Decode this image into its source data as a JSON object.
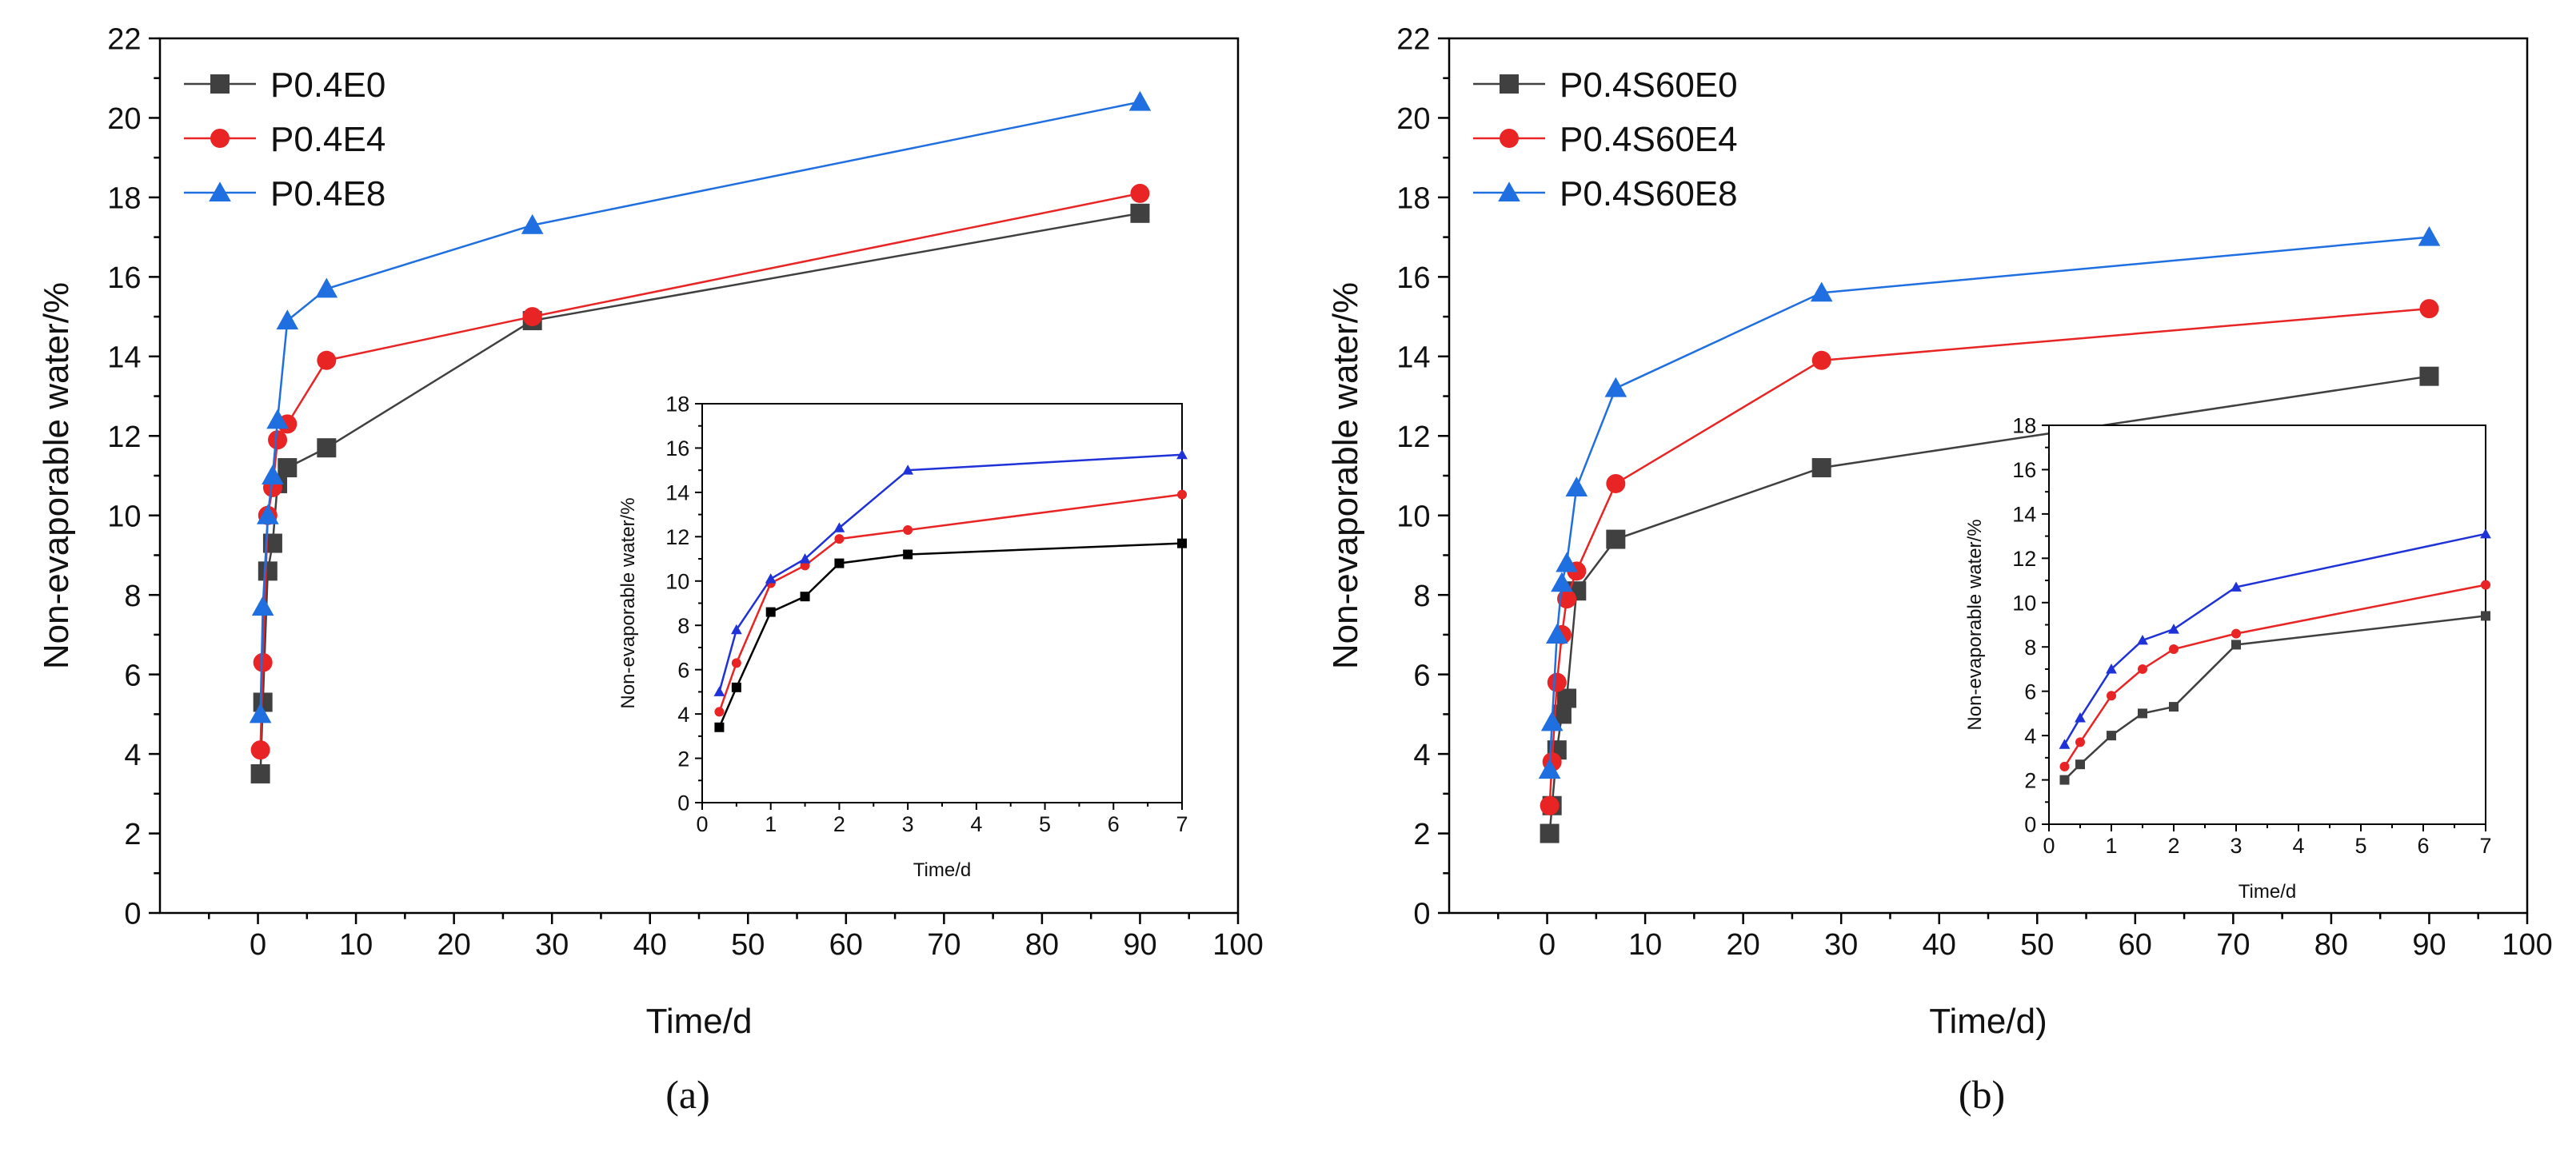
{
  "figure": {
    "panels": [
      {
        "id": "a",
        "caption": "(a)",
        "main": {
          "xlabel": "Time/d",
          "ylabel": "Non-evaporable water/%",
          "xlim": [
            -10,
            100
          ],
          "ylim": [
            0,
            22
          ],
          "xticks": [
            0,
            10,
            20,
            30,
            40,
            50,
            60,
            70,
            80,
            90,
            100
          ],
          "yticks": [
            0,
            2,
            4,
            6,
            8,
            10,
            12,
            14,
            16,
            18,
            20,
            22
          ],
          "series": [
            {
              "name": "P0.4E0",
              "color": "#404040",
              "marker": "square",
              "x": [
                0.25,
                0.5,
                1,
                1.5,
                2,
                3,
                7,
                28,
                90
              ],
              "y": [
                3.5,
                5.3,
                8.6,
                9.3,
                10.8,
                11.2,
                11.7,
                14.9,
                17.6
              ]
            },
            {
              "name": "P0.4E4",
              "color": "#e82424",
              "marker": "circle",
              "x": [
                0.25,
                0.5,
                1,
                1.5,
                2,
                3,
                7,
                28,
                90
              ],
              "y": [
                4.1,
                6.3,
                10.0,
                10.7,
                11.9,
                12.3,
                13.9,
                15.0,
                18.1
              ]
            },
            {
              "name": "P0.4E8",
              "color": "#1f6fe0",
              "marker": "triangle",
              "x": [
                0.25,
                0.5,
                1,
                1.5,
                2,
                3,
                7,
                28,
                90
              ],
              "y": [
                5.0,
                7.7,
                10.0,
                11.0,
                12.4,
                14.9,
                15.7,
                17.3,
                20.4
              ]
            }
          ]
        },
        "inset": {
          "xlabel": "Time/d",
          "ylabel": "Non-evaporable water/%",
          "xlim": [
            0,
            7
          ],
          "ylim": [
            0,
            18
          ],
          "xticks": [
            0,
            1,
            2,
            3,
            4,
            5,
            6,
            7
          ],
          "yticks": [
            0,
            2,
            4,
            6,
            8,
            10,
            12,
            14,
            16,
            18
          ],
          "series": [
            {
              "color": "#000000",
              "marker": "square",
              "x": [
                0.25,
                0.5,
                1,
                1.5,
                2,
                3,
                7
              ],
              "y": [
                3.4,
                5.2,
                8.6,
                9.3,
                10.8,
                11.2,
                11.7
              ]
            },
            {
              "color": "#e82424",
              "marker": "circle",
              "x": [
                0.25,
                0.5,
                1,
                1.5,
                2,
                3,
                7
              ],
              "y": [
                4.1,
                6.3,
                9.9,
                10.7,
                11.9,
                12.3,
                13.9
              ]
            },
            {
              "color": "#1f32d8",
              "marker": "triangle",
              "x": [
                0.25,
                0.5,
                1,
                1.5,
                2,
                3,
                7
              ],
              "y": [
                5.0,
                7.8,
                10.1,
                11.0,
                12.4,
                15.0,
                15.7
              ]
            }
          ]
        }
      },
      {
        "id": "b",
        "caption": "(b)",
        "main": {
          "xlabel": "Time/d)",
          "ylabel": "Non-evaporable water/%",
          "xlim": [
            -10,
            100
          ],
          "ylim": [
            0,
            22
          ],
          "xticks": [
            0,
            10,
            20,
            30,
            40,
            50,
            60,
            70,
            80,
            90,
            100
          ],
          "yticks": [
            0,
            2,
            4,
            6,
            8,
            10,
            12,
            14,
            16,
            18,
            20,
            22
          ],
          "series": [
            {
              "name": "P0.4S60E0",
              "color": "#404040",
              "marker": "square",
              "x": [
                0.25,
                0.5,
                1,
                1.5,
                2,
                3,
                7,
                28,
                90
              ],
              "y": [
                2.0,
                2.7,
                4.1,
                5.0,
                5.4,
                8.1,
                9.4,
                11.2,
                13.5
              ]
            },
            {
              "name": "P0.4S60E4",
              "color": "#e82424",
              "marker": "circle",
              "x": [
                0.25,
                0.5,
                1,
                1.5,
                2,
                3,
                7,
                28,
                90
              ],
              "y": [
                2.7,
                3.8,
                5.8,
                7.0,
                7.9,
                8.6,
                10.8,
                13.9,
                15.2
              ]
            },
            {
              "name": "P0.4S60E8",
              "color": "#1f6fe0",
              "marker": "triangle",
              "x": [
                0.25,
                0.5,
                1,
                1.5,
                2,
                3,
                7,
                28,
                90
              ],
              "y": [
                3.6,
                4.8,
                7.0,
                8.3,
                8.8,
                10.7,
                13.2,
                15.6,
                17.0
              ]
            }
          ]
        },
        "inset": {
          "xlabel": "Time/d",
          "ylabel": "Non-evaporable water/%",
          "xlim": [
            0,
            7
          ],
          "ylim": [
            0,
            18
          ],
          "xticks": [
            0,
            1,
            2,
            3,
            4,
            5,
            6,
            7
          ],
          "yticks": [
            0,
            2,
            4,
            6,
            8,
            10,
            12,
            14,
            16,
            18
          ],
          "series": [
            {
              "color": "#404040",
              "marker": "square",
              "x": [
                0.25,
                0.5,
                1,
                1.5,
                2,
                3,
                7
              ],
              "y": [
                2.0,
                2.7,
                4.0,
                5.0,
                5.3,
                8.1,
                9.4
              ]
            },
            {
              "color": "#e82424",
              "marker": "circle",
              "x": [
                0.25,
                0.5,
                1,
                1.5,
                2,
                3,
                7
              ],
              "y": [
                2.6,
                3.7,
                5.8,
                7.0,
                7.9,
                8.6,
                10.8
              ]
            },
            {
              "color": "#1f32d8",
              "marker": "triangle",
              "x": [
                0.25,
                0.5,
                1,
                1.5,
                2,
                3,
                7
              ],
              "y": [
                3.6,
                4.8,
                7.0,
                8.3,
                8.8,
                10.7,
                13.1
              ]
            }
          ]
        }
      }
    ]
  },
  "chart_data": [
    {
      "type": "line",
      "title": "(a)",
      "xlabel": "Time/d",
      "ylabel": "Non-evaporable water/%",
      "xlim": [
        -10,
        100
      ],
      "ylim": [
        0,
        22
      ],
      "legend": "top-left",
      "series": [
        {
          "name": "P0.4E0",
          "x": [
            0.25,
            0.5,
            1,
            1.5,
            2,
            3,
            7,
            28,
            90
          ],
          "y": [
            3.5,
            5.3,
            8.6,
            9.3,
            10.8,
            11.2,
            11.7,
            14.9,
            17.6
          ]
        },
        {
          "name": "P0.4E4",
          "x": [
            0.25,
            0.5,
            1,
            1.5,
            2,
            3,
            7,
            28,
            90
          ],
          "y": [
            4.1,
            6.3,
            10.0,
            10.7,
            11.9,
            12.3,
            13.9,
            15.0,
            18.1
          ]
        },
        {
          "name": "P0.4E8",
          "x": [
            0.25,
            0.5,
            1,
            1.5,
            2,
            3,
            7,
            28,
            90
          ],
          "y": [
            5.0,
            7.7,
            10.0,
            11.0,
            12.4,
            14.9,
            15.7,
            17.3,
            20.4
          ]
        }
      ],
      "inset": {
        "xlabel": "Time/d",
        "ylabel": "Non-evaporable water/%",
        "xlim": [
          0,
          7
        ],
        "ylim": [
          0,
          18
        ]
      }
    },
    {
      "type": "line",
      "title": "(b)",
      "xlabel": "Time/d)",
      "ylabel": "Non-evaporable water/%",
      "xlim": [
        -10,
        100
      ],
      "ylim": [
        0,
        22
      ],
      "legend": "top-left",
      "series": [
        {
          "name": "P0.4S60E0",
          "x": [
            0.25,
            0.5,
            1,
            1.5,
            2,
            3,
            7,
            28,
            90
          ],
          "y": [
            2.0,
            2.7,
            4.1,
            5.0,
            5.4,
            8.1,
            9.4,
            11.2,
            13.5
          ]
        },
        {
          "name": "P0.4S60E4",
          "x": [
            0.25,
            0.5,
            1,
            1.5,
            2,
            3,
            7,
            28,
            90
          ],
          "y": [
            2.7,
            3.8,
            5.8,
            7.0,
            7.9,
            8.6,
            10.8,
            13.9,
            15.2
          ]
        },
        {
          "name": "P0.4S60E8",
          "x": [
            0.25,
            0.5,
            1,
            1.5,
            2,
            3,
            7,
            28,
            90
          ],
          "y": [
            3.6,
            4.8,
            7.0,
            8.3,
            8.8,
            10.7,
            13.2,
            15.6,
            17.0
          ]
        }
      ],
      "inset": {
        "xlabel": "Time/d",
        "ylabel": "Non-evaporable water/%",
        "xlim": [
          0,
          7
        ],
        "ylim": [
          0,
          18
        ]
      }
    }
  ]
}
